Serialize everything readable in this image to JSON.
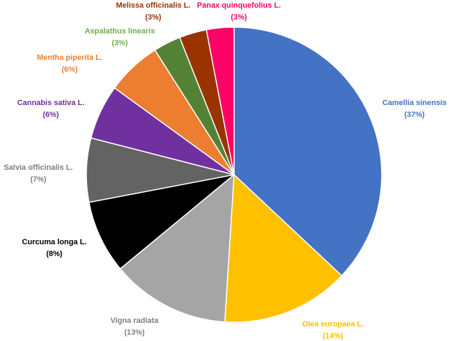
{
  "chart_data": {
    "type": "pie",
    "categories": [
      "Camellia sinensis",
      "Olea europaea L.",
      "Vigna radiata",
      "Curcuma longa L.",
      "Salvia officinalis  L.",
      "Cannabis sativa  L.",
      "Mentha piperita L.",
      "Aspalathus  linearis",
      "Melissa  officinalis  L.",
      "Panax  quinquefolius  L."
    ],
    "values": [
      37,
      14,
      13,
      8,
      7,
      6,
      6,
      3,
      3,
      3
    ],
    "value_labels": [
      "(37%)",
      "(14%)",
      "(13%)",
      "(8%)",
      "(7%)",
      "(6%)",
      "(6%)",
      "(3%)",
      "(3%)",
      "(3%)"
    ],
    "colors": [
      "#4472c4",
      "#ffc000",
      "#a5a5a5",
      "#000000",
      "#636363",
      "#7030a0",
      "#ed7d31",
      "#548235",
      "#993300",
      "#ff0066"
    ]
  }
}
